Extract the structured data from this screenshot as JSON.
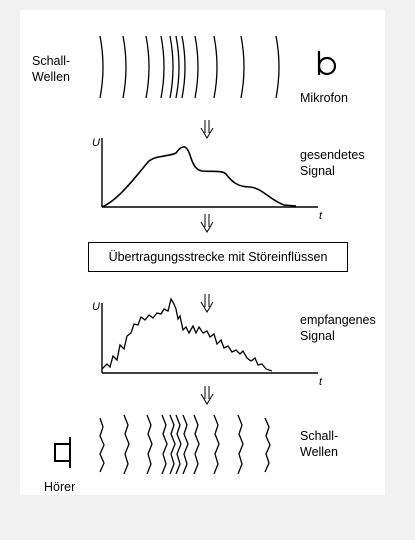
{
  "top": {
    "waves_label": "Schall-\nWellen",
    "microphone_label": "Mikrofon"
  },
  "sent_signal": {
    "label": "gesendetes\nSignal",
    "y_axis": "U",
    "x_axis": "t"
  },
  "channel_box": "Übertragungsstrecke mit Störeinflüssen",
  "received_signal": {
    "label": "empfangenes\nSignal",
    "y_axis": "U",
    "x_axis": "t"
  },
  "bottom": {
    "waves_label": "Schall-\nWellen",
    "receiver_label": "Hörer"
  }
}
